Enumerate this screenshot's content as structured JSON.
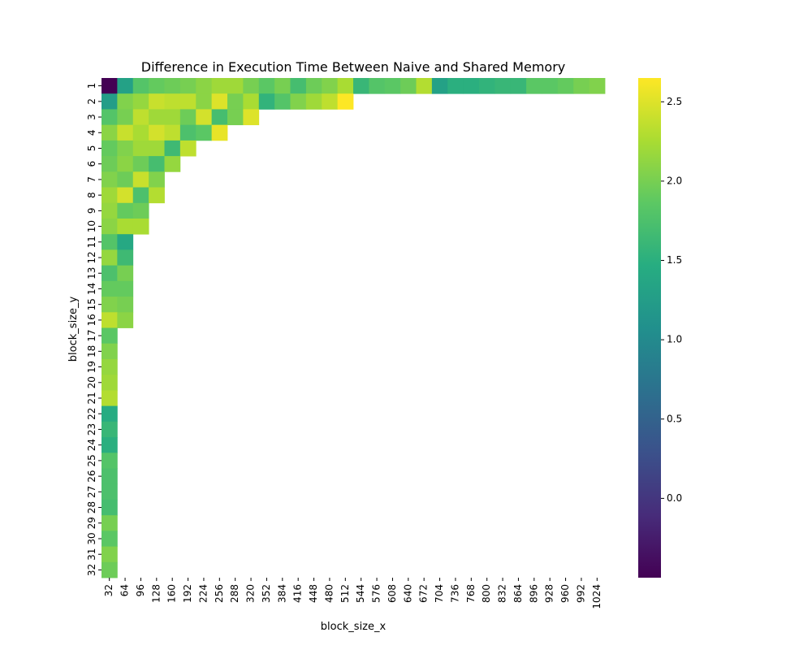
{
  "chart_data": {
    "type": "heatmap",
    "title": "Difference in Execution Time Between Naive and Shared Memory",
    "xlabel": "block_size_x",
    "ylabel": "block_size_y",
    "x_categories": [
      "32",
      "64",
      "96",
      "128",
      "160",
      "192",
      "224",
      "256",
      "288",
      "320",
      "352",
      "384",
      "416",
      "448",
      "480",
      "512",
      "544",
      "576",
      "608",
      "640",
      "672",
      "704",
      "736",
      "768",
      "800",
      "832",
      "864",
      "896",
      "928",
      "960",
      "992",
      "1024"
    ],
    "y_categories": [
      "1",
      "2",
      "3",
      "4",
      "5",
      "6",
      "7",
      "8",
      "9",
      "10",
      "11",
      "12",
      "13",
      "14",
      "15",
      "16",
      "17",
      "18",
      "19",
      "20",
      "21",
      "22",
      "23",
      "24",
      "25",
      "26",
      "27",
      "28",
      "29",
      "30",
      "31",
      "32"
    ],
    "colormap": "viridis",
    "colorbar": {
      "vmin": -0.5,
      "vmax": 2.65,
      "ticks": [
        0.0,
        0.5,
        1.0,
        1.5,
        2.0,
        2.5
      ],
      "tick_labels": [
        "0.0",
        "0.5",
        "1.0",
        "1.5",
        "2.0",
        "2.5"
      ]
    },
    "rows": [
      [
        -0.5,
        1.3,
        1.8,
        1.9,
        1.95,
        2.0,
        2.1,
        2.2,
        2.2,
        2.0,
        1.85,
        2.0,
        1.7,
        1.95,
        2.05,
        2.25,
        1.6,
        1.8,
        1.85,
        1.95,
        2.3,
        1.3,
        1.5,
        1.5,
        1.55,
        1.6,
        1.6,
        1.85,
        1.85,
        1.9,
        2.0,
        2.05
      ],
      [
        1.25,
        2.05,
        2.15,
        2.4,
        2.35,
        2.35,
        2.1,
        2.5,
        2.0,
        2.25,
        1.55,
        1.8,
        2.05,
        2.2,
        2.35,
        2.65
      ],
      [
        1.8,
        2.0,
        2.35,
        2.2,
        2.2,
        1.95,
        2.45,
        1.7,
        2.0,
        2.5
      ],
      [
        2.1,
        2.4,
        2.25,
        2.45,
        2.35,
        1.75,
        1.85,
        2.55
      ],
      [
        1.9,
        2.05,
        2.2,
        2.2,
        1.65,
        2.35
      ],
      [
        1.95,
        2.1,
        1.95,
        1.7,
        2.15
      ],
      [
        2.05,
        1.95,
        2.4,
        2.05
      ],
      [
        2.2,
        2.45,
        1.75,
        2.3
      ],
      [
        2.15,
        1.9,
        1.95
      ],
      [
        2.1,
        2.25,
        2.25
      ],
      [
        1.8,
        1.4
      ],
      [
        2.15,
        1.65
      ],
      [
        1.75,
        2.0
      ],
      [
        1.9,
        1.9
      ],
      [
        2.05,
        2.0
      ],
      [
        2.35,
        2.1
      ],
      [
        1.85
      ],
      [
        2.05
      ],
      [
        2.15
      ],
      [
        2.2
      ],
      [
        2.3
      ],
      [
        1.45
      ],
      [
        1.6
      ],
      [
        1.5
      ],
      [
        1.8
      ],
      [
        1.75
      ],
      [
        1.75
      ],
      [
        1.7
      ],
      [
        2.0
      ],
      [
        1.85
      ],
      [
        2.05
      ],
      [
        1.95
      ]
    ]
  }
}
